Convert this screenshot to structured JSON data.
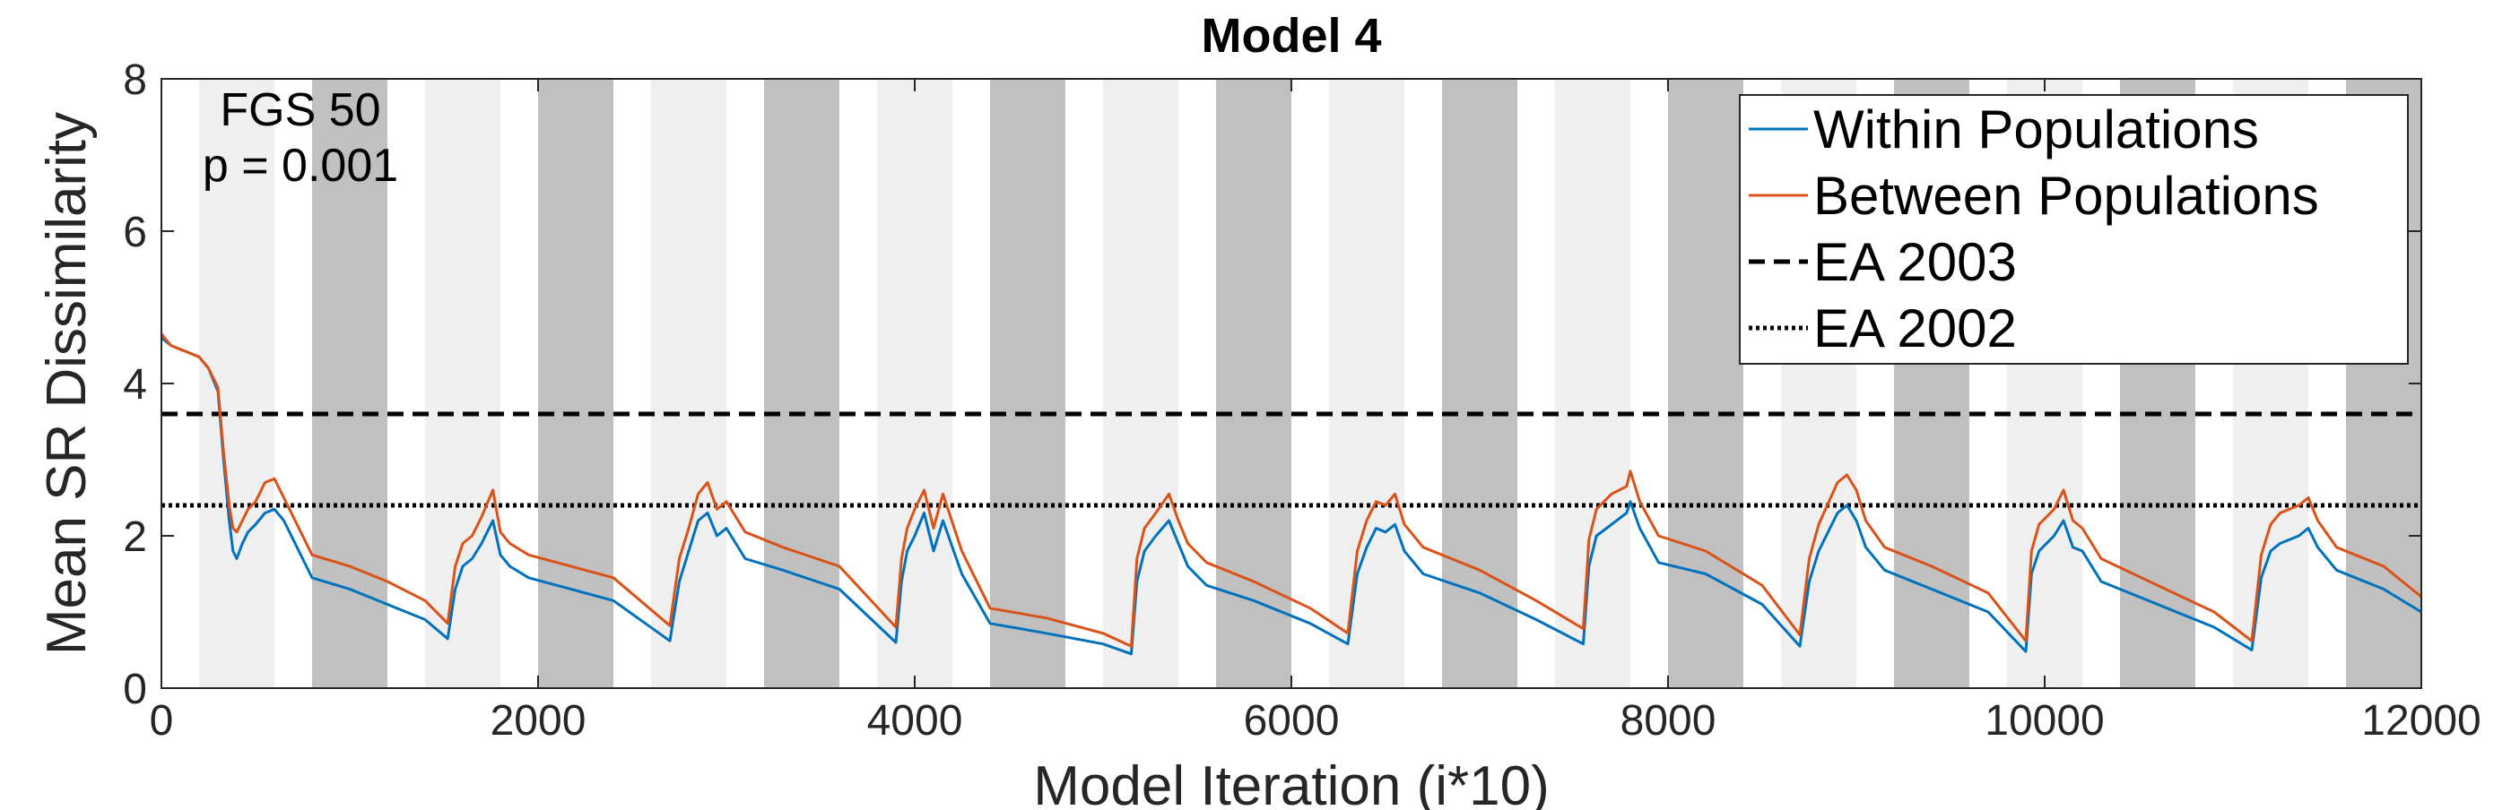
{
  "chart_data": {
    "type": "line",
    "title": "Model 4",
    "xlabel": "Model Iteration (i*10)",
    "ylabel": "Mean SR Dissimilarity",
    "xlim": [
      0,
      12000
    ],
    "ylim": [
      0,
      8
    ],
    "xticks": [
      0,
      2000,
      4000,
      6000,
      8000,
      10000,
      12000
    ],
    "yticks": [
      0,
      2,
      4,
      6,
      8
    ],
    "grid": false,
    "legend_position": "top-right",
    "annotation": [
      "FGS 50",
      "p = 0.001"
    ],
    "background_bands": {
      "light_color": "#efefef",
      "dark_color": "#c0c0c0",
      "light": [
        [
          200,
          600
        ],
        [
          1400,
          1800
        ],
        [
          2600,
          3000
        ],
        [
          3800,
          4200
        ],
        [
          5000,
          5400
        ],
        [
          6200,
          6600
        ],
        [
          7400,
          7800
        ],
        [
          8600,
          9000
        ],
        [
          9800,
          10200
        ],
        [
          11000,
          11400
        ]
      ],
      "dark": [
        [
          800,
          1200
        ],
        [
          2000,
          2400
        ],
        [
          3200,
          3600
        ],
        [
          4400,
          4800
        ],
        [
          5600,
          6000
        ],
        [
          6800,
          7200
        ],
        [
          8000,
          8400
        ],
        [
          9200,
          9600
        ],
        [
          10400,
          10800
        ],
        [
          11600,
          12000
        ]
      ]
    },
    "series": [
      {
        "name": "Within Populations",
        "color": "#0072bd",
        "style": "solid",
        "x": [
          0,
          50,
          100,
          150,
          200,
          250,
          300,
          330,
          360,
          380,
          400,
          430,
          460,
          500,
          550,
          600,
          650,
          700,
          800,
          1000,
          1200,
          1400,
          1520,
          1560,
          1600,
          1650,
          1700,
          1760,
          1800,
          1850,
          1950,
          2100,
          2400,
          2700,
          2750,
          2800,
          2850,
          2900,
          2950,
          3000,
          3100,
          3300,
          3600,
          3900,
          3930,
          3960,
          4000,
          4050,
          4100,
          4150,
          4250,
          4400,
          4700,
          5000,
          5150,
          5180,
          5220,
          5280,
          5350,
          5400,
          5450,
          5550,
          5800,
          6100,
          6300,
          6350,
          6400,
          6450,
          6500,
          6550,
          6600,
          6700,
          7000,
          7300,
          7550,
          7580,
          7620,
          7700,
          7780,
          7800,
          7850,
          7950,
          8200,
          8500,
          8700,
          8750,
          8800,
          8900,
          8950,
          9000,
          9050,
          9150,
          9400,
          9700,
          9900,
          9930,
          9970,
          10050,
          10100,
          10150,
          10200,
          10300,
          10600,
          10900,
          11100,
          11150,
          11200,
          11250,
          11350,
          11400,
          11450,
          11550,
          11800,
          12000
        ],
        "y": [
          4.6,
          4.5,
          4.45,
          4.4,
          4.35,
          4.2,
          3.9,
          3.0,
          2.2,
          1.8,
          1.7,
          1.9,
          2.05,
          2.15,
          2.3,
          2.35,
          2.2,
          1.95,
          1.45,
          1.3,
          1.1,
          0.9,
          0.65,
          1.3,
          1.6,
          1.7,
          1.9,
          2.2,
          1.75,
          1.6,
          1.45,
          1.35,
          1.15,
          0.62,
          1.4,
          1.8,
          2.2,
          2.3,
          2.0,
          2.1,
          1.7,
          1.55,
          1.3,
          0.6,
          1.4,
          1.8,
          2.0,
          2.3,
          1.8,
          2.2,
          1.5,
          0.85,
          0.72,
          0.58,
          0.45,
          1.4,
          1.8,
          2.0,
          2.2,
          1.9,
          1.6,
          1.35,
          1.15,
          0.85,
          0.58,
          1.5,
          1.85,
          2.1,
          2.05,
          2.15,
          1.8,
          1.5,
          1.25,
          0.9,
          0.58,
          1.6,
          2.0,
          2.15,
          2.3,
          2.45,
          2.1,
          1.65,
          1.5,
          1.1,
          0.55,
          1.4,
          1.8,
          2.3,
          2.4,
          2.2,
          1.85,
          1.55,
          1.3,
          1.0,
          0.48,
          1.5,
          1.8,
          2.0,
          2.2,
          1.85,
          1.8,
          1.4,
          1.1,
          0.8,
          0.5,
          1.45,
          1.8,
          1.9,
          2.0,
          2.1,
          1.85,
          1.55,
          1.3,
          1.0
        ]
      },
      {
        "name": "Between Populations",
        "color": "#d95319",
        "style": "solid",
        "x": [
          0,
          50,
          100,
          150,
          200,
          250,
          300,
          330,
          360,
          380,
          400,
          430,
          460,
          500,
          550,
          600,
          650,
          700,
          800,
          1000,
          1200,
          1400,
          1520,
          1560,
          1600,
          1650,
          1700,
          1760,
          1800,
          1850,
          1950,
          2100,
          2400,
          2700,
          2750,
          2800,
          2850,
          2900,
          2950,
          3000,
          3100,
          3300,
          3600,
          3900,
          3930,
          3960,
          4000,
          4050,
          4100,
          4150,
          4250,
          4400,
          4700,
          5000,
          5150,
          5180,
          5220,
          5280,
          5350,
          5400,
          5450,
          5550,
          5800,
          6100,
          6300,
          6350,
          6400,
          6450,
          6500,
          6550,
          6600,
          6700,
          7000,
          7300,
          7550,
          7580,
          7620,
          7700,
          7780,
          7800,
          7850,
          7950,
          8200,
          8500,
          8700,
          8750,
          8800,
          8900,
          8950,
          9000,
          9050,
          9150,
          9400,
          9700,
          9900,
          9930,
          9970,
          10050,
          10100,
          10150,
          10200,
          10300,
          10600,
          10900,
          11100,
          11150,
          11200,
          11250,
          11350,
          11400,
          11450,
          11550,
          11800,
          12000
        ],
        "y": [
          4.65,
          4.5,
          4.45,
          4.4,
          4.35,
          4.2,
          3.95,
          3.1,
          2.4,
          2.1,
          2.05,
          2.2,
          2.35,
          2.45,
          2.7,
          2.75,
          2.5,
          2.25,
          1.75,
          1.6,
          1.4,
          1.15,
          0.85,
          1.6,
          1.9,
          2.0,
          2.25,
          2.6,
          2.05,
          1.9,
          1.75,
          1.65,
          1.45,
          0.82,
          1.7,
          2.1,
          2.55,
          2.7,
          2.35,
          2.45,
          2.05,
          1.85,
          1.6,
          0.8,
          1.7,
          2.1,
          2.35,
          2.6,
          2.1,
          2.55,
          1.8,
          1.05,
          0.92,
          0.72,
          0.55,
          1.7,
          2.1,
          2.3,
          2.55,
          2.2,
          1.9,
          1.65,
          1.4,
          1.05,
          0.72,
          1.8,
          2.2,
          2.45,
          2.4,
          2.55,
          2.15,
          1.85,
          1.55,
          1.15,
          0.78,
          1.95,
          2.35,
          2.55,
          2.65,
          2.85,
          2.45,
          2.0,
          1.8,
          1.35,
          0.7,
          1.7,
          2.15,
          2.7,
          2.8,
          2.6,
          2.2,
          1.85,
          1.6,
          1.25,
          0.62,
          1.8,
          2.15,
          2.35,
          2.6,
          2.2,
          2.1,
          1.7,
          1.35,
          1.0,
          0.62,
          1.75,
          2.15,
          2.3,
          2.4,
          2.5,
          2.2,
          1.85,
          1.6,
          1.2
        ]
      },
      {
        "name": "EA 2003",
        "color": "#000000",
        "style": "dashed",
        "x": [
          0,
          12000
        ],
        "y": [
          3.6,
          3.6
        ]
      },
      {
        "name": "EA 2002",
        "color": "#000000",
        "style": "dotted",
        "x": [
          0,
          12000
        ],
        "y": [
          2.4,
          2.4
        ]
      }
    ]
  }
}
